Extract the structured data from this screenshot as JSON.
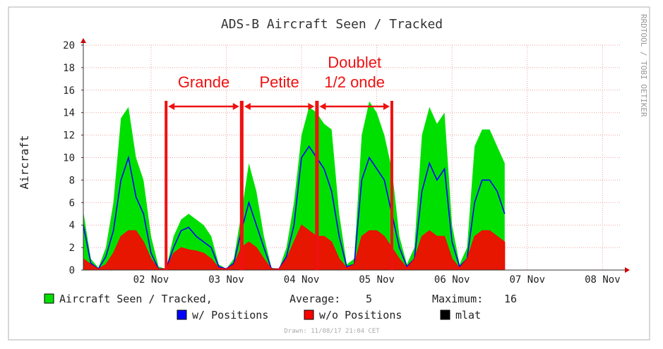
{
  "chart_data": {
    "type": "area",
    "title": "ADS-B Aircraft Seen / Tracked",
    "ylabel": "Aircraft",
    "xlabel": "",
    "ylim": [
      0,
      20
    ],
    "yticks": [
      0,
      2,
      4,
      6,
      8,
      10,
      12,
      14,
      16,
      18,
      20
    ],
    "grid": true,
    "legend_position": "bottom",
    "watermark": "RRDTOOL / TOBI OETIKER",
    "drawn": "Drawn: 11/08/17 21:04 CET",
    "x_tick_labels": [
      "02 Nov",
      "03 Nov",
      "04 Nov",
      "05 Nov",
      "06 Nov",
      "07 Nov",
      "08 Nov"
    ],
    "x_range_days": [
      1.1,
      8.25
    ],
    "series": [
      {
        "name": "Aircraft Seen / Tracked,",
        "color": "#00e000",
        "values": [
          [
            1.1,
            5.2
          ],
          [
            1.2,
            1
          ],
          [
            1.3,
            0.2
          ],
          [
            1.4,
            2
          ],
          [
            1.5,
            6
          ],
          [
            1.6,
            13.5
          ],
          [
            1.7,
            14.5
          ],
          [
            1.8,
            10
          ],
          [
            1.9,
            8
          ],
          [
            2.0,
            3
          ],
          [
            2.1,
            0.3
          ],
          [
            2.2,
            0.1
          ],
          [
            2.3,
            3
          ],
          [
            2.4,
            4.5
          ],
          [
            2.5,
            5
          ],
          [
            2.6,
            4.5
          ],
          [
            2.7,
            4
          ],
          [
            2.8,
            3
          ],
          [
            2.9,
            0.5
          ],
          [
            3.0,
            0.1
          ],
          [
            3.1,
            1
          ],
          [
            3.2,
            5
          ],
          [
            3.3,
            9.5
          ],
          [
            3.4,
            7
          ],
          [
            3.5,
            3
          ],
          [
            3.6,
            0.2
          ],
          [
            3.7,
            0.1
          ],
          [
            3.8,
            2
          ],
          [
            3.9,
            6
          ],
          [
            4.0,
            12
          ],
          [
            4.1,
            14.5
          ],
          [
            4.2,
            14
          ],
          [
            4.3,
            13
          ],
          [
            4.4,
            12.5
          ],
          [
            4.5,
            5
          ],
          [
            4.6,
            0.5
          ],
          [
            4.7,
            1
          ],
          [
            4.8,
            12
          ],
          [
            4.9,
            15
          ],
          [
            5.0,
            14
          ],
          [
            5.1,
            12
          ],
          [
            5.2,
            9
          ],
          [
            5.3,
            3
          ],
          [
            5.4,
            0.5
          ],
          [
            5.5,
            2
          ],
          [
            5.6,
            12
          ],
          [
            5.7,
            14.5
          ],
          [
            5.8,
            13
          ],
          [
            5.9,
            14
          ],
          [
            6.0,
            4
          ],
          [
            6.1,
            0.5
          ],
          [
            6.2,
            2
          ],
          [
            6.3,
            11
          ],
          [
            6.4,
            12.5
          ],
          [
            6.5,
            12.5
          ],
          [
            6.6,
            11
          ],
          [
            6.7,
            9.5
          ]
        ]
      },
      {
        "name": "w/ Positions",
        "color": "#0000ff",
        "values": [
          [
            1.1,
            4
          ],
          [
            1.2,
            0.6
          ],
          [
            1.3,
            0.1
          ],
          [
            1.4,
            1.2
          ],
          [
            1.5,
            3.5
          ],
          [
            1.6,
            8
          ],
          [
            1.7,
            10
          ],
          [
            1.8,
            6.5
          ],
          [
            1.9,
            5
          ],
          [
            2.0,
            1.5
          ],
          [
            2.1,
            0.1
          ],
          [
            2.2,
            0.1
          ],
          [
            2.3,
            2
          ],
          [
            2.4,
            3.5
          ],
          [
            2.5,
            3.8
          ],
          [
            2.6,
            3
          ],
          [
            2.7,
            2.5
          ],
          [
            2.8,
            2
          ],
          [
            2.9,
            0.3
          ],
          [
            3.0,
            0.1
          ],
          [
            3.1,
            0.6
          ],
          [
            3.2,
            3.5
          ],
          [
            3.3,
            6
          ],
          [
            3.4,
            4
          ],
          [
            3.5,
            2
          ],
          [
            3.6,
            0.1
          ],
          [
            3.7,
            0.1
          ],
          [
            3.8,
            1.2
          ],
          [
            3.9,
            4
          ],
          [
            4.0,
            10
          ],
          [
            4.1,
            11
          ],
          [
            4.2,
            10
          ],
          [
            4.3,
            9
          ],
          [
            4.4,
            7
          ],
          [
            4.5,
            3
          ],
          [
            4.6,
            0.3
          ],
          [
            4.7,
            0.5
          ],
          [
            4.8,
            8
          ],
          [
            4.9,
            10
          ],
          [
            5.0,
            9
          ],
          [
            5.1,
            8
          ],
          [
            5.2,
            5
          ],
          [
            5.3,
            2
          ],
          [
            5.4,
            0.3
          ],
          [
            5.5,
            1
          ],
          [
            5.6,
            7
          ],
          [
            5.7,
            9.5
          ],
          [
            5.8,
            8
          ],
          [
            5.9,
            9
          ],
          [
            6.0,
            2.5
          ],
          [
            6.1,
            0.3
          ],
          [
            6.2,
            1
          ],
          [
            6.3,
            6
          ],
          [
            6.4,
            8
          ],
          [
            6.5,
            8
          ],
          [
            6.6,
            7
          ],
          [
            6.7,
            5
          ]
        ]
      },
      {
        "name": "w/o Positions",
        "color": "#ff0000",
        "values": [
          [
            1.1,
            1
          ],
          [
            1.2,
            0.5
          ],
          [
            1.3,
            0.1
          ],
          [
            1.4,
            0.5
          ],
          [
            1.5,
            1.5
          ],
          [
            1.6,
            3
          ],
          [
            1.7,
            3.5
          ],
          [
            1.8,
            3.5
          ],
          [
            1.9,
            2.5
          ],
          [
            2.0,
            1
          ],
          [
            2.1,
            0.1
          ],
          [
            2.2,
            0.1
          ],
          [
            2.3,
            1.5
          ],
          [
            2.4,
            2
          ],
          [
            2.5,
            1.8
          ],
          [
            2.6,
            1.7
          ],
          [
            2.7,
            1.5
          ],
          [
            2.8,
            1
          ],
          [
            2.9,
            0.2
          ],
          [
            3.0,
            0.1
          ],
          [
            3.1,
            0.5
          ],
          [
            3.2,
            2
          ],
          [
            3.3,
            2.5
          ],
          [
            3.4,
            2
          ],
          [
            3.5,
            1
          ],
          [
            3.6,
            0.1
          ],
          [
            3.7,
            0.1
          ],
          [
            3.8,
            1
          ],
          [
            3.9,
            2.5
          ],
          [
            4.0,
            4
          ],
          [
            4.1,
            3.5
          ],
          [
            4.2,
            3
          ],
          [
            4.3,
            3
          ],
          [
            4.4,
            2.5
          ],
          [
            4.5,
            1
          ],
          [
            4.6,
            0.2
          ],
          [
            4.7,
            0.5
          ],
          [
            4.8,
            3
          ],
          [
            4.9,
            3.5
          ],
          [
            5.0,
            3.5
          ],
          [
            5.1,
            3
          ],
          [
            5.2,
            2
          ],
          [
            5.3,
            1
          ],
          [
            5.4,
            0.2
          ],
          [
            5.5,
            1
          ],
          [
            5.6,
            3
          ],
          [
            5.7,
            3.5
          ],
          [
            5.8,
            3
          ],
          [
            5.9,
            3
          ],
          [
            6.0,
            1
          ],
          [
            6.1,
            0.2
          ],
          [
            6.2,
            1
          ],
          [
            6.3,
            3
          ],
          [
            6.4,
            3.5
          ],
          [
            6.5,
            3.5
          ],
          [
            6.6,
            3
          ],
          [
            6.7,
            2.5
          ]
        ]
      },
      {
        "name": "mlat",
        "color": "#000000",
        "values": []
      }
    ],
    "stats": {
      "average_label": "Average:",
      "average_value": "5",
      "maximum_label": "Maximum:",
      "maximum_value": "16"
    },
    "annotations": [
      {
        "text": "Grande",
        "from": 2.2,
        "to": 3.2
      },
      {
        "text": "Petite",
        "from": 3.21,
        "to": 4.2
      },
      {
        "text": "Doublet",
        "text2": "1/2 onde",
        "from": 4.21,
        "to": 5.2
      }
    ]
  }
}
